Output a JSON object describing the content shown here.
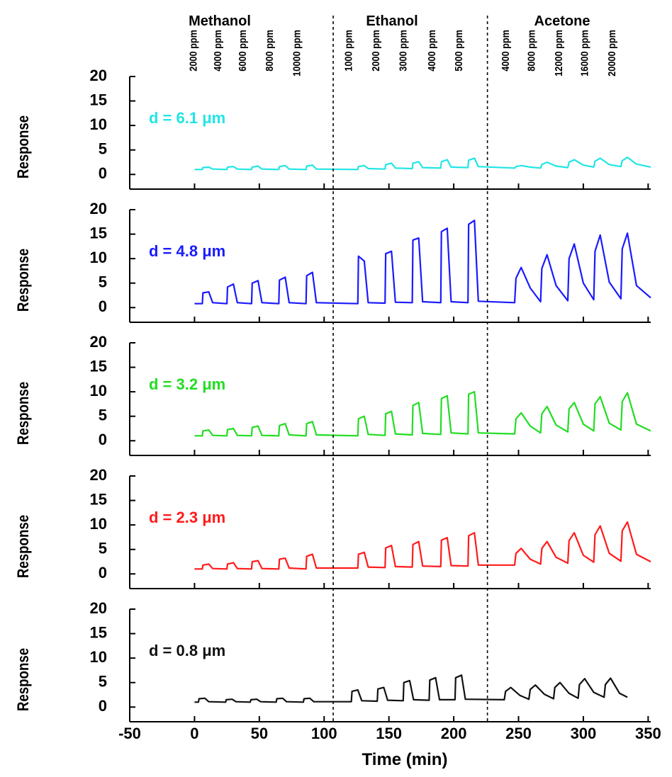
{
  "chart_data": [
    {
      "type": "line",
      "ylabel": "Response",
      "annotation": "d = 6.1 μm",
      "color": "#22e5e5",
      "groups": [
        {
          "label": "Methanol",
          "concentrations": [
            "2000 ppm",
            "4000 ppm",
            "6000 ppm",
            "8000 ppm",
            "10000 ppm"
          ]
        },
        {
          "label": "Ethanol",
          "concentrations": [
            "1000 ppm",
            "2000 ppm",
            "3000 ppm",
            "4000 ppm",
            "5000 ppm"
          ]
        },
        {
          "label": "Acetone",
          "concentrations": [
            "4000 ppm",
            "8000 ppm",
            "12000 ppm",
            "16000 ppm",
            "20000 ppm"
          ]
        }
      ],
      "dividers": [
        107,
        226
      ],
      "xlim": [
        -50,
        352
      ],
      "ylim": [
        -3,
        20
      ],
      "yticks": [
        0,
        5,
        10,
        15,
        20
      ],
      "x": [
        0,
        6,
        6.5,
        11,
        14,
        25,
        25.5,
        30,
        33,
        44,
        44.5,
        49,
        52,
        65,
        65.5,
        70,
        73,
        86,
        86.5,
        91,
        94,
        126,
        126.5,
        131,
        134,
        147,
        147.5,
        152,
        155,
        168,
        168.5,
        173,
        176,
        190,
        190.5,
        195,
        198,
        211,
        211.5,
        216,
        219,
        247,
        248,
        252,
        259,
        267,
        268,
        272,
        279,
        288,
        289,
        293,
        300,
        308,
        309,
        313,
        320,
        329,
        330,
        334,
        341,
        352
      ],
      "values": [
        1.0,
        1.0,
        1.4,
        1.5,
        1.1,
        1.0,
        1.5,
        1.6,
        1.1,
        1.0,
        1.5,
        1.7,
        1.1,
        1.0,
        1.6,
        1.8,
        1.1,
        1.0,
        1.7,
        1.9,
        1.1,
        1.0,
        1.6,
        1.8,
        1.2,
        1.1,
        2.0,
        2.3,
        1.3,
        1.2,
        2.3,
        2.6,
        1.4,
        1.3,
        2.6,
        3.0,
        1.5,
        1.4,
        2.9,
        3.3,
        1.6,
        1.3,
        1.6,
        1.8,
        1.5,
        1.3,
        2.0,
        2.5,
        1.7,
        1.4,
        2.5,
        3.0,
        1.9,
        1.5,
        2.7,
        3.3,
        2.0,
        1.6,
        2.8,
        3.5,
        2.1,
        1.5
      ]
    },
    {
      "type": "line",
      "ylabel": "Response",
      "annotation": "d = 4.8 μm",
      "color": "#1a1aff",
      "xlim": [
        -50,
        352
      ],
      "ylim": [
        -3,
        20
      ],
      "yticks": [
        0,
        5,
        10,
        15,
        20
      ],
      "x": [
        0,
        6,
        6.5,
        11,
        14,
        25,
        25.5,
        30,
        33,
        44,
        44.5,
        49,
        52,
        65,
        65.5,
        70,
        73,
        86,
        86.5,
        91,
        94,
        126,
        126.5,
        131,
        134,
        147,
        147.5,
        152,
        155,
        168,
        168.5,
        173,
        176,
        190,
        190.5,
        195,
        198,
        211,
        211.5,
        216,
        219,
        247,
        248,
        252,
        259,
        267,
        268,
        272,
        279,
        288,
        289,
        293,
        300,
        308,
        309,
        313,
        320,
        329,
        330,
        334,
        341,
        352
      ],
      "values": [
        0.8,
        0.8,
        3.0,
        3.2,
        1.0,
        0.8,
        4.2,
        4.8,
        1.0,
        0.8,
        5.0,
        5.5,
        1.0,
        0.8,
        5.6,
        6.2,
        1.0,
        0.8,
        6.5,
        7.2,
        1.0,
        0.8,
        10.5,
        9.5,
        1.0,
        0.9,
        11.0,
        11.5,
        1.1,
        1.0,
        13.8,
        14.2,
        1.2,
        1.0,
        15.5,
        16.2,
        1.2,
        1.0,
        17.0,
        17.8,
        1.3,
        1.0,
        6.0,
        8.2,
        4.0,
        1.2,
        8.0,
        10.8,
        4.5,
        1.4,
        10.0,
        13.0,
        5.0,
        1.6,
        11.5,
        14.8,
        5.2,
        1.8,
        12.0,
        15.2,
        4.5,
        2.0
      ]
    },
    {
      "type": "line",
      "ylabel": "Response",
      "annotation": "d = 3.2 μm",
      "color": "#22dd22",
      "xlim": [
        -50,
        352
      ],
      "ylim": [
        -3,
        20
      ],
      "yticks": [
        0,
        5,
        10,
        15,
        20
      ],
      "x": [
        0,
        6,
        6.5,
        11,
        14,
        25,
        25.5,
        30,
        33,
        44,
        44.5,
        49,
        52,
        65,
        65.5,
        70,
        73,
        86,
        86.5,
        91,
        94,
        126,
        126.5,
        131,
        134,
        147,
        147.5,
        152,
        155,
        168,
        168.5,
        173,
        176,
        190,
        190.5,
        195,
        198,
        211,
        211.5,
        216,
        219,
        247,
        248,
        252,
        259,
        267,
        268,
        272,
        279,
        288,
        289,
        293,
        300,
        308,
        309,
        313,
        320,
        329,
        330,
        334,
        341,
        352
      ],
      "values": [
        1.0,
        1.0,
        2.0,
        2.2,
        1.1,
        1.0,
        2.3,
        2.5,
        1.1,
        1.0,
        2.7,
        3.0,
        1.1,
        1.0,
        3.1,
        3.5,
        1.2,
        1.0,
        3.5,
        3.9,
        1.2,
        1.0,
        4.5,
        5.0,
        1.3,
        1.1,
        5.5,
        6.0,
        1.4,
        1.2,
        7.2,
        7.8,
        1.5,
        1.3,
        8.6,
        9.2,
        1.6,
        1.4,
        9.5,
        10.0,
        1.6,
        1.4,
        4.5,
        5.7,
        3.0,
        1.6,
        5.5,
        7.0,
        3.2,
        1.8,
        6.5,
        7.8,
        3.4,
        2.0,
        7.5,
        9.0,
        3.6,
        2.2,
        8.0,
        9.8,
        3.4,
        2.0
      ]
    },
    {
      "type": "line",
      "ylabel": "Response",
      "annotation": "d = 2.3 μm",
      "color": "#ff1a1a",
      "xlim": [
        -50,
        352
      ],
      "ylim": [
        -3,
        20
      ],
      "yticks": [
        0,
        5,
        10,
        15,
        20
      ],
      "x": [
        0,
        6,
        6.5,
        11,
        14,
        25,
        25.5,
        30,
        33,
        44,
        44.5,
        49,
        52,
        65,
        65.5,
        70,
        73,
        86,
        86.5,
        91,
        94,
        126,
        126.5,
        131,
        134,
        147,
        147.5,
        152,
        155,
        168,
        168.5,
        173,
        176,
        190,
        190.5,
        195,
        198,
        211,
        211.5,
        216,
        219,
        247,
        248,
        252,
        259,
        267,
        268,
        272,
        279,
        288,
        289,
        293,
        300,
        308,
        309,
        313,
        320,
        329,
        330,
        334,
        341,
        352
      ],
      "values": [
        1.0,
        1.0,
        1.8,
        2.0,
        1.1,
        1.0,
        2.0,
        2.3,
        1.1,
        1.0,
        2.5,
        2.7,
        1.1,
        1.0,
        3.0,
        3.2,
        1.2,
        1.0,
        3.6,
        4.0,
        1.2,
        1.2,
        4.0,
        4.4,
        1.4,
        1.3,
        5.3,
        5.8,
        1.5,
        1.4,
        6.0,
        6.6,
        1.6,
        1.5,
        6.9,
        7.4,
        1.7,
        1.6,
        7.8,
        8.4,
        1.8,
        1.8,
        4.2,
        5.2,
        3.0,
        2.0,
        5.2,
        6.6,
        3.4,
        2.2,
        6.8,
        8.4,
        3.8,
        2.4,
        8.0,
        9.8,
        4.2,
        2.6,
        8.8,
        10.6,
        4.0,
        2.5
      ]
    },
    {
      "type": "line",
      "ylabel": "Response",
      "annotation": "d = 0.8 μm",
      "color": "#111111",
      "xlabel": "Time (min)",
      "xticks": [
        -50,
        0,
        50,
        100,
        150,
        200,
        250,
        300,
        350
      ],
      "xlim": [
        -50,
        352
      ],
      "ylim": [
        -3,
        20
      ],
      "yticks": [
        0,
        5,
        10,
        15,
        20
      ],
      "x": [
        0,
        3,
        3.5,
        8,
        11,
        24,
        24.5,
        29,
        32,
        43,
        43.5,
        48,
        51,
        63,
        63.5,
        68,
        71,
        84,
        84.5,
        89,
        92,
        121,
        121.5,
        126,
        129,
        141,
        141.5,
        146,
        149,
        161,
        161.5,
        166,
        169,
        181,
        181.5,
        186,
        189,
        201,
        201.5,
        206,
        209,
        239,
        240,
        244,
        251,
        258,
        259,
        263,
        270,
        277,
        278,
        282,
        289,
        296,
        297,
        301,
        308,
        316,
        317,
        321,
        328,
        334
      ],
      "values": [
        1.0,
        1.0,
        1.7,
        1.8,
        1.1,
        1.0,
        1.5,
        1.6,
        1.1,
        1.0,
        1.5,
        1.6,
        1.1,
        1.0,
        1.7,
        1.8,
        1.1,
        1.0,
        1.7,
        1.8,
        1.1,
        1.1,
        3.2,
        3.5,
        1.3,
        1.2,
        3.7,
        4.0,
        1.4,
        1.3,
        5.0,
        5.4,
        1.5,
        1.4,
        5.5,
        6.0,
        1.5,
        1.5,
        6.0,
        6.5,
        1.6,
        1.5,
        3.2,
        4.0,
        2.4,
        1.6,
        3.6,
        4.5,
        2.6,
        1.7,
        4.0,
        5.0,
        2.8,
        1.8,
        4.6,
        5.8,
        3.0,
        2.0,
        4.6,
        5.9,
        2.8,
        2.0
      ]
    }
  ]
}
